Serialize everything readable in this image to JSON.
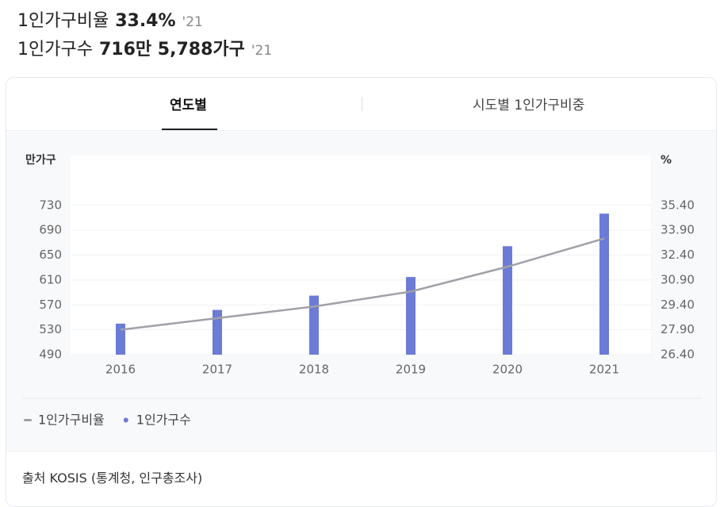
{
  "header": {
    "ratio_label": "1인가구비율",
    "ratio_value": "33.4%",
    "ratio_year": "'21",
    "count_label": "1인가구수",
    "count_value": "716만 5,788가구",
    "count_year": "'21"
  },
  "tabs": [
    "연도별",
    "시도별 1인가구비중"
  ],
  "chart_data": {
    "type": "bar",
    "y_label": "만가구",
    "y2_label": "%",
    "categories": [
      "2016",
      "2017",
      "2018",
      "2019",
      "2020",
      "2021"
    ],
    "series": [
      {
        "name": "1인가구비율",
        "color": "#a0a0a8",
        "type": "line",
        "axis": "y2",
        "values": [
          27.9,
          28.6,
          29.3,
          30.2,
          31.7,
          33.4
        ]
      },
      {
        "name": "1인가구수",
        "color": "#6b7bd6",
        "type": "bar",
        "values": [
          539.8,
          561.9,
          584.9,
          614.8,
          664.3,
          716.6
        ]
      }
    ],
    "ylim": [
      490,
      810
    ],
    "yticks": [
      490,
      530,
      570,
      610,
      650,
      690,
      730
    ],
    "y2lim": [
      26.4,
      38.4
    ],
    "y2ticks": [
      {
        "value": 26.4,
        "label": "26.40"
      },
      {
        "value": 27.9,
        "label": "27.90"
      },
      {
        "value": 29.4,
        "label": "29.40"
      },
      {
        "value": 30.9,
        "label": "30.90"
      },
      {
        "value": 32.4,
        "label": "32.40"
      },
      {
        "value": 33.9,
        "label": "33.90"
      },
      {
        "value": 35.4,
        "label": "35.40"
      }
    ],
    "grid": true
  },
  "source": "출처 KOSIS (통계청, 인구총조사)"
}
